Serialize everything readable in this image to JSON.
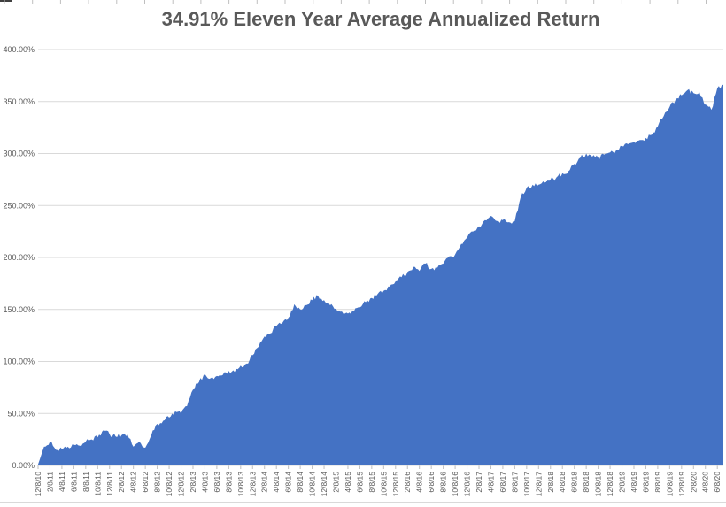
{
  "title": "34.91% Eleven Year Average Annualized Return",
  "chart_data": {
    "type": "area",
    "title": "34.91% Eleven Year Average Annualized Return",
    "xlabel": "",
    "ylabel": "",
    "ylim": [
      0,
      400
    ],
    "grid": "horizontal",
    "legend": "none",
    "y_ticks": [
      "400.00%",
      "350.00%",
      "300.00%",
      "250.00%",
      "200.00%",
      "150.00%",
      "100.00%",
      "50.00%",
      "0.00%"
    ],
    "y_tick_values": [
      400,
      350,
      300,
      250,
      200,
      150,
      100,
      50,
      0
    ],
    "x_labels": [
      "12/8/10",
      "2/8/11",
      "4/8/11",
      "6/8/11",
      "8/8/11",
      "10/8/11",
      "12/8/11",
      "2/8/12",
      "4/8/12",
      "6/8/12",
      "8/8/12",
      "10/8/12",
      "12/8/12",
      "2/8/13",
      "4/8/13",
      "6/8/13",
      "8/8/13",
      "10/8/13",
      "12/8/13",
      "2/8/14",
      "4/8/14",
      "6/8/14",
      "8/8/14",
      "10/8/14",
      "12/8/14",
      "2/8/15",
      "4/8/15",
      "6/8/15",
      "8/8/15",
      "10/8/15",
      "12/8/15",
      "2/8/16",
      "4/8/16",
      "6/8/16",
      "8/8/16",
      "10/8/16",
      "12/8/16",
      "2/8/17",
      "4/8/17",
      "6/8/17",
      "8/8/17",
      "10/8/17",
      "12/8/17",
      "2/8/18",
      "4/8/18",
      "6/8/18",
      "8/8/18",
      "10/8/18",
      "12/8/18",
      "2/8/19",
      "4/8/19",
      "6/8/19",
      "8/8/19",
      "10/8/19",
      "12/8/19",
      "2/8/20",
      "4/8/20",
      "6/8/20"
    ],
    "points_per_label_interval": 2,
    "values_pct": [
      1,
      18,
      23,
      15,
      16,
      18,
      20,
      19,
      23,
      25,
      27,
      34,
      30,
      28,
      29,
      30,
      18,
      23,
      17,
      29,
      40,
      43,
      46,
      52,
      50,
      57,
      73,
      80,
      88,
      84,
      86,
      87,
      91,
      90,
      96,
      98,
      106,
      114,
      124,
      127,
      134,
      137,
      142,
      155,
      150,
      154,
      159,
      163,
      159,
      154,
      151,
      148,
      146,
      148,
      152,
      157,
      161,
      165,
      168,
      172,
      177,
      181,
      186,
      191,
      187,
      194,
      189,
      190,
      194,
      201,
      203,
      213,
      219,
      225,
      230,
      236,
      240,
      235,
      236,
      234,
      235,
      258,
      267,
      270,
      270,
      272,
      275,
      277,
      281,
      283,
      290,
      296,
      300,
      297,
      296,
      299,
      301,
      303,
      307,
      309,
      311,
      313,
      315,
      318,
      326,
      336,
      345,
      352,
      356,
      361,
      358,
      359,
      347,
      342,
      363,
      366
    ],
    "colors": {
      "area_fill": "#4472C4",
      "gridline": "#D9D9D9",
      "axis_line": "#D9D9D9",
      "tick_mark": "#BFBFBF",
      "axis_text": "#595959",
      "title_text": "#595959",
      "sheet_remnant_line": "#D9D9D9",
      "sheet_remnant_tick": "#BFBFBF",
      "sheet_edge_mark": "#404040"
    }
  }
}
